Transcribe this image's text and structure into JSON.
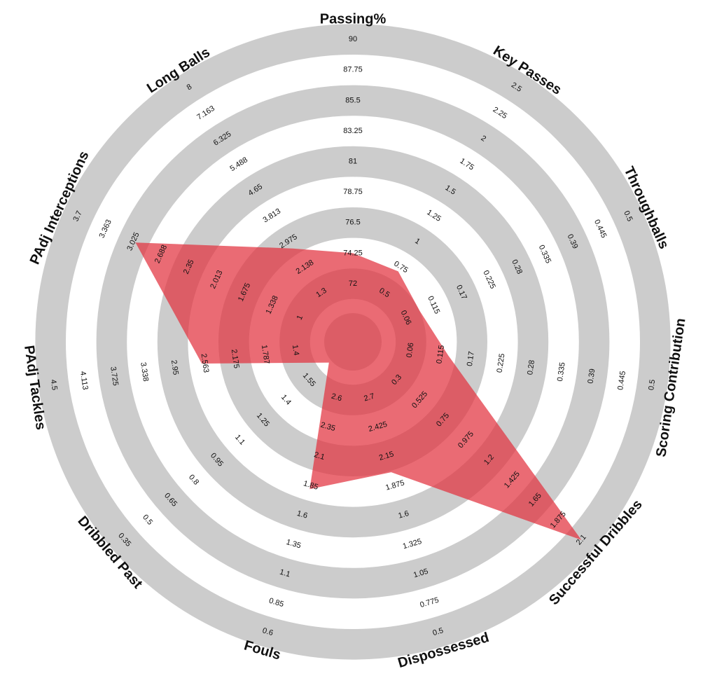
{
  "chart_data": {
    "type": "radar",
    "color": "#e2323e",
    "ring_color": "#cccccc",
    "categories": [
      "Passing%",
      "Key Passes",
      "Throughballs",
      "Scoring Contribution",
      "Successful Dribbles",
      "Dispossessed",
      "Fouls",
      "Dribbled Past",
      "PAdj Tackles",
      "PAdj Interceptions",
      "Long Balls"
    ],
    "values": [
      74.25,
      0.71,
      0.088,
      0.129,
      2.1,
      2.0,
      1.82,
      1.68,
      2.6,
      3.0,
      2.75
    ],
    "lims": [
      [
        72,
        90
      ],
      [
        0.5,
        2.5
      ],
      [
        0.06,
        0.5
      ],
      [
        0.06,
        0.5
      ],
      [
        0.3,
        2.1
      ],
      [
        2.7,
        0.5
      ],
      [
        2.6,
        0.6
      ],
      [
        1.55,
        0.35
      ],
      [
        1.4,
        4.5
      ],
      [
        1,
        3.7
      ],
      [
        1.3,
        8
      ]
    ],
    "ticks": [
      [
        72,
        74.25,
        76.5,
        78.75,
        81,
        83.25,
        85.5,
        87.75,
        90
      ],
      [
        0.5,
        0.75,
        1,
        1.25,
        1.5,
        1.75,
        2,
        2.25,
        2.5
      ],
      [
        0.06,
        0.115,
        0.17,
        0.225,
        0.28,
        0.335,
        0.39,
        0.445,
        0.5
      ],
      [
        0.06,
        0.115,
        0.17,
        0.225,
        0.28,
        0.335,
        0.39,
        0.445,
        0.5
      ],
      [
        0.3,
        0.525,
        0.75,
        0.975,
        1.2,
        1.425,
        1.65,
        1.875,
        2.1
      ],
      [
        2.7,
        2.425,
        2.15,
        1.875,
        1.6,
        1.325,
        1.05,
        0.775,
        0.5
      ],
      [
        2.6,
        2.35,
        2.1,
        1.85,
        1.6,
        1.35,
        1.1,
        0.85,
        0.6
      ],
      [
        1.55,
        1.4,
        1.25,
        1.1,
        0.95,
        0.8,
        0.65,
        0.5,
        0.35
      ],
      [
        1.4,
        1.787,
        2.175,
        2.563,
        2.95,
        3.338,
        3.725,
        4.113,
        4.5
      ],
      [
        1,
        1.338,
        1.675,
        2.013,
        2.35,
        2.688,
        3.025,
        3.363,
        3.7
      ],
      [
        1.3,
        2.138,
        2.975,
        3.813,
        4.65,
        5.488,
        6.325,
        7.163,
        8
      ]
    ]
  }
}
